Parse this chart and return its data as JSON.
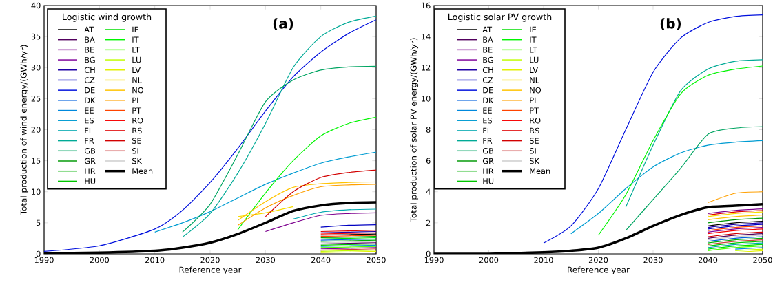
{
  "chart_data": [
    {
      "type": "line",
      "xlabel": "Reference year",
      "ylabel": "Total production of wind energy/(GWh/yr)",
      "legend_title": "Logistic wind growth",
      "legend": "top left",
      "annotations": [
        "(a)"
      ],
      "xlim": [
        1990,
        2050
      ],
      "ylim": [
        0,
        40
      ],
      "xticks": [
        1990,
        2000,
        2010,
        2020,
        2030,
        2040,
        2050
      ],
      "yticks": [
        0,
        5,
        10,
        15,
        20,
        25,
        30,
        35,
        40
      ],
      "x": [
        1990,
        2000,
        2010,
        2015,
        2020,
        2025,
        2030,
        2035,
        2040,
        2045,
        2050
      ],
      "series": [
        {
          "name": "AT",
          "color": "#000000",
          "x": [
            2040,
            2045,
            2050
          ],
          "values": [
            3.0,
            3.1,
            3.2
          ]
        },
        {
          "name": "BA",
          "color": "#52005e",
          "x": [
            2040,
            2045,
            2050
          ],
          "values": [
            1.6,
            1.7,
            1.8
          ]
        },
        {
          "name": "BE",
          "color": "#7d008e",
          "x": [
            2030,
            2035,
            2040,
            2045,
            2050
          ],
          "values": [
            3.6,
            5.0,
            6.2,
            6.5,
            6.6
          ]
        },
        {
          "name": "BG",
          "color": "#7f009a",
          "x": [
            2040,
            2045,
            2050
          ],
          "values": [
            0.8,
            0.9,
            1.0
          ]
        },
        {
          "name": "CH",
          "color": "#2000a6",
          "x": [
            2040,
            2045,
            2050
          ],
          "values": [
            3.4,
            3.5,
            3.6
          ]
        },
        {
          "name": "CZ",
          "color": "#0000c1",
          "x": [
            2040,
            2045,
            2050
          ],
          "values": [
            4.3,
            4.6,
            4.7
          ]
        },
        {
          "name": "DE",
          "color": "#0010dd",
          "values": [
            0.4,
            1.3,
            4,
            7,
            11.5,
            17,
            23,
            28.5,
            32.5,
            35.5,
            37.7
          ]
        },
        {
          "name": "DK",
          "color": "#0062dd",
          "x": [
            2040,
            2045,
            2050
          ],
          "values": [
            2.2,
            2.3,
            2.4
          ]
        },
        {
          "name": "EE",
          "color": "#0089dd",
          "x": [
            2040,
            2045,
            2050
          ],
          "values": [
            1.2,
            1.3,
            1.4
          ]
        },
        {
          "name": "ES",
          "color": "#009cd2",
          "x": [
            2010,
            2015,
            2020,
            2025,
            2030,
            2035,
            2040,
            2045,
            2050
          ],
          "values": [
            3.5,
            5,
            6.8,
            9,
            11.2,
            13,
            14.6,
            15.6,
            16.4
          ]
        },
        {
          "name": "FI",
          "color": "#00a8af",
          "x": [
            2035,
            2040,
            2045,
            2050
          ],
          "values": [
            5.6,
            6.7,
            7.1,
            7.2
          ]
        },
        {
          "name": "FR",
          "color": "#00aa96",
          "x": [
            2015,
            2020,
            2025,
            2030,
            2035,
            2040,
            2045,
            2050
          ],
          "values": [
            2.7,
            6.5,
            13,
            21,
            30,
            35,
            37.3,
            38.3
          ]
        },
        {
          "name": "GB",
          "color": "#00a562",
          "x": [
            2015,
            2020,
            2025,
            2030,
            2035,
            2040,
            2045,
            2050
          ],
          "values": [
            3.5,
            8,
            16,
            24.5,
            28,
            29.6,
            30.1,
            30.2
          ]
        },
        {
          "name": "GR",
          "color": "#009905",
          "x": [
            2040,
            2045,
            2050
          ],
          "values": [
            2.6,
            2.7,
            2.8
          ]
        },
        {
          "name": "HR",
          "color": "#00af00",
          "x": [
            2040,
            2045,
            2050
          ],
          "values": [
            2.0,
            2.1,
            2.2
          ]
        },
        {
          "name": "HU",
          "color": "#00c600",
          "x": [
            2040,
            2045,
            2050
          ],
          "values": [
            1.4,
            1.5,
            1.6
          ]
        },
        {
          "name": "IE",
          "color": "#00de00",
          "x": [
            2040,
            2045,
            2050
          ],
          "values": [
            2.4,
            2.5,
            2.6
          ]
        },
        {
          "name": "IT",
          "color": "#00f500",
          "x": [
            2025,
            2030,
            2035,
            2040,
            2045,
            2050
          ],
          "values": [
            3.9,
            9.8,
            15,
            19,
            21,
            22
          ]
        },
        {
          "name": "LT",
          "color": "#4dff00",
          "x": [
            2040,
            2045,
            2050
          ],
          "values": [
            1.0,
            1.1,
            1.2
          ]
        },
        {
          "name": "LU",
          "color": "#c0fd00",
          "x": [
            2040,
            2045,
            2050
          ],
          "values": [
            0.4,
            0.5,
            0.6
          ]
        },
        {
          "name": "LV",
          "color": "#e3f100",
          "x": [
            2040,
            2045,
            2050
          ],
          "values": [
            0.2,
            0.3,
            0.4
          ]
        },
        {
          "name": "NL",
          "color": "#f6dd00",
          "x": [
            2025,
            2030,
            2035
          ],
          "values": [
            6.0,
            6.6,
            7.6
          ]
        },
        {
          "name": "NO",
          "color": "#ffc300",
          "x": [
            2025,
            2030,
            2035,
            2040,
            2045,
            2050
          ],
          "values": [
            5.4,
            8.4,
            10.7,
            11.3,
            11.5,
            11.6
          ]
        },
        {
          "name": "PL",
          "color": "#ffa000",
          "x": [
            2025,
            2030,
            2035,
            2040,
            2045,
            2050
          ],
          "values": [
            4.6,
            7.4,
            9.4,
            10.8,
            11.1,
            11.2
          ]
        },
        {
          "name": "PT",
          "color": "#ff4400",
          "x": [
            2040,
            2045,
            2050
          ],
          "values": [
            2.8,
            2.9,
            3.0
          ]
        },
        {
          "name": "RO",
          "color": "#f70000",
          "x": [
            2040,
            2045,
            2050
          ],
          "values": [
            3.2,
            3.3,
            3.4
          ]
        },
        {
          "name": "RS",
          "color": "#df0000",
          "x": [
            2040,
            2045,
            2050
          ],
          "values": [
            3.6,
            3.7,
            3.8
          ]
        },
        {
          "name": "SE",
          "color": "#d20000",
          "x": [
            2030,
            2035,
            2040,
            2045,
            2050
          ],
          "values": [
            6.0,
            10.0,
            12.3,
            13.1,
            13.5
          ]
        },
        {
          "name": "SI",
          "color": "#cc3f3f",
          "x": [
            2040,
            2045,
            2050
          ],
          "values": [
            0.6,
            0.7,
            0.8
          ]
        },
        {
          "name": "SK",
          "color": "#cccccc",
          "x": [
            2040,
            2045,
            2050
          ],
          "values": [
            1.8,
            1.9,
            2.0
          ]
        },
        {
          "name": "Mean",
          "color": "#000000",
          "values": [
            0.1,
            0.2,
            0.5,
            1,
            1.8,
            3.2,
            5.0,
            6.9,
            7.8,
            8.2,
            8.3
          ]
        }
      ]
    },
    {
      "type": "line",
      "xlabel": "Reference year",
      "ylabel": "Total production of solar PV energy/(GWh/yr)",
      "legend_title": "Logistic solar PV growth",
      "legend": "top left",
      "annotations": [
        "(b)"
      ],
      "xlim": [
        1990,
        2050
      ],
      "ylim": [
        0,
        16
      ],
      "xticks": [
        1990,
        2000,
        2010,
        2020,
        2030,
        2040,
        2050
      ],
      "yticks": [
        0,
        2,
        4,
        6,
        8,
        10,
        12,
        14,
        16
      ],
      "x": [
        1990,
        2000,
        2010,
        2015,
        2020,
        2025,
        2030,
        2035,
        2040,
        2045,
        2050
      ],
      "series": [
        {
          "name": "AT",
          "color": "#000000",
          "x": [
            2040,
            2045,
            2050
          ],
          "values": [
            1.8,
            2.0,
            2.1
          ]
        },
        {
          "name": "BA",
          "color": "#52005e",
          "x": [
            2040,
            2045,
            2050
          ],
          "values": [
            1.0,
            1.2,
            1.3
          ]
        },
        {
          "name": "BE",
          "color": "#7d008e",
          "x": [
            2040,
            2045,
            2050
          ],
          "values": [
            2.6,
            2.8,
            2.9
          ]
        },
        {
          "name": "BG",
          "color": "#7f009a",
          "x": [
            2040,
            2045,
            2050
          ],
          "values": [
            1.4,
            1.6,
            1.7
          ]
        },
        {
          "name": "CH",
          "color": "#2000a6",
          "x": [
            2040,
            2045,
            2050
          ],
          "values": [
            1.7,
            1.9,
            2.0
          ]
        },
        {
          "name": "CZ",
          "color": "#0000c1",
          "x": [
            2040,
            2045,
            2050
          ],
          "values": [
            1.6,
            1.8,
            1.9
          ]
        },
        {
          "name": "DE",
          "color": "#0010dd",
          "x": [
            2010,
            2015,
            2020,
            2025,
            2030,
            2035,
            2040,
            2045,
            2050
          ],
          "values": [
            0.7,
            1.8,
            4.2,
            8,
            11.7,
            13.9,
            14.9,
            15.3,
            15.4
          ]
        },
        {
          "name": "DK",
          "color": "#0062dd",
          "x": [
            2040,
            2045,
            2050
          ],
          "values": [
            0.8,
            1.0,
            1.1
          ]
        },
        {
          "name": "EE",
          "color": "#0089dd",
          "x": [
            2045,
            2050
          ],
          "values": [
            0.3,
            0.4
          ]
        },
        {
          "name": "ES",
          "color": "#009cd2",
          "x": [
            2015,
            2020,
            2025,
            2030,
            2035,
            2040,
            2045,
            2050
          ],
          "values": [
            1.3,
            2.6,
            4.2,
            5.6,
            6.5,
            7.0,
            7.2,
            7.3
          ]
        },
        {
          "name": "FI",
          "color": "#00a8af",
          "x": [
            2040,
            2045,
            2050
          ],
          "values": [
            0.4,
            0.6,
            0.7
          ]
        },
        {
          "name": "FR",
          "color": "#00aa96",
          "x": [
            2025,
            2030,
            2035,
            2040,
            2045,
            2050
          ],
          "values": [
            3.0,
            7.0,
            10.5,
            11.9,
            12.4,
            12.5
          ]
        },
        {
          "name": "GB",
          "color": "#00a562",
          "x": [
            2025,
            2030,
            2035,
            2040,
            2045,
            2050
          ],
          "values": [
            1.5,
            3.5,
            5.5,
            7.7,
            8.1,
            8.2
          ]
        },
        {
          "name": "GR",
          "color": "#009905",
          "x": [
            2040,
            2045,
            2050
          ],
          "values": [
            2.0,
            2.2,
            2.3
          ]
        },
        {
          "name": "HR",
          "color": "#00af00",
          "x": [
            2040,
            2045,
            2050
          ],
          "values": [
            0.7,
            0.9,
            1.0
          ]
        },
        {
          "name": "HU",
          "color": "#00c600",
          "x": [
            2040,
            2045,
            2050
          ],
          "values": [
            0.5,
            0.7,
            0.8
          ]
        },
        {
          "name": "IE",
          "color": "#00de00",
          "x": [
            2040,
            2045,
            2050
          ],
          "values": [
            0.3,
            0.5,
            0.6
          ]
        },
        {
          "name": "IT",
          "color": "#00f500",
          "x": [
            2020,
            2025,
            2030,
            2035,
            2040,
            2045,
            2050
          ],
          "values": [
            1.2,
            3.8,
            7.3,
            10.3,
            11.5,
            11.9,
            12.1
          ]
        },
        {
          "name": "LT",
          "color": "#4dff00",
          "x": [
            2040,
            2045,
            2050
          ],
          "values": [
            0.2,
            0.4,
            0.5
          ]
        },
        {
          "name": "LU",
          "color": "#c0fd00",
          "x": [
            2045,
            2050
          ],
          "values": [
            0.2,
            0.3
          ]
        },
        {
          "name": "LV",
          "color": "#e3f100",
          "x": [
            2045,
            2050
          ],
          "values": [
            0.1,
            0.2
          ]
        },
        {
          "name": "NL",
          "color": "#f6dd00",
          "x": [
            2040,
            2045,
            2050
          ],
          "values": [
            2.4,
            2.6,
            2.7
          ]
        },
        {
          "name": "NO",
          "color": "#ffc300",
          "x": [
            2040,
            2045,
            2050
          ],
          "values": [
            2.2,
            2.4,
            2.5
          ]
        },
        {
          "name": "PL",
          "color": "#ffa000",
          "x": [
            2040,
            2045,
            2050
          ],
          "values": [
            3.3,
            3.9,
            4.0
          ]
        },
        {
          "name": "PT",
          "color": "#ff4400",
          "x": [
            2040,
            2045,
            2050
          ],
          "values": [
            1.5,
            1.7,
            1.8
          ]
        },
        {
          "name": "RO",
          "color": "#f70000",
          "x": [
            2040,
            2045,
            2050
          ],
          "values": [
            1.3,
            1.5,
            1.6
          ]
        },
        {
          "name": "RS",
          "color": "#df0000",
          "x": [
            2040,
            2045,
            2050
          ],
          "values": [
            2.5,
            2.7,
            2.8
          ]
        },
        {
          "name": "SE",
          "color": "#d20000",
          "x": [
            2040,
            2045,
            2050
          ],
          "values": [
            1.1,
            1.3,
            1.4
          ]
        },
        {
          "name": "SI",
          "color": "#cc3f3f",
          "x": [
            2040,
            2045,
            2050
          ],
          "values": [
            0.6,
            0.8,
            0.9
          ]
        },
        {
          "name": "SK",
          "color": "#cccccc",
          "x": [
            2040,
            2045,
            2050
          ],
          "values": [
            0.9,
            1.1,
            1.2
          ]
        },
        {
          "name": "Mean",
          "color": "#000000",
          "values": [
            0,
            0,
            0.1,
            0.2,
            0.4,
            1.0,
            1.8,
            2.5,
            3.0,
            3.1,
            3.2
          ]
        }
      ]
    }
  ]
}
